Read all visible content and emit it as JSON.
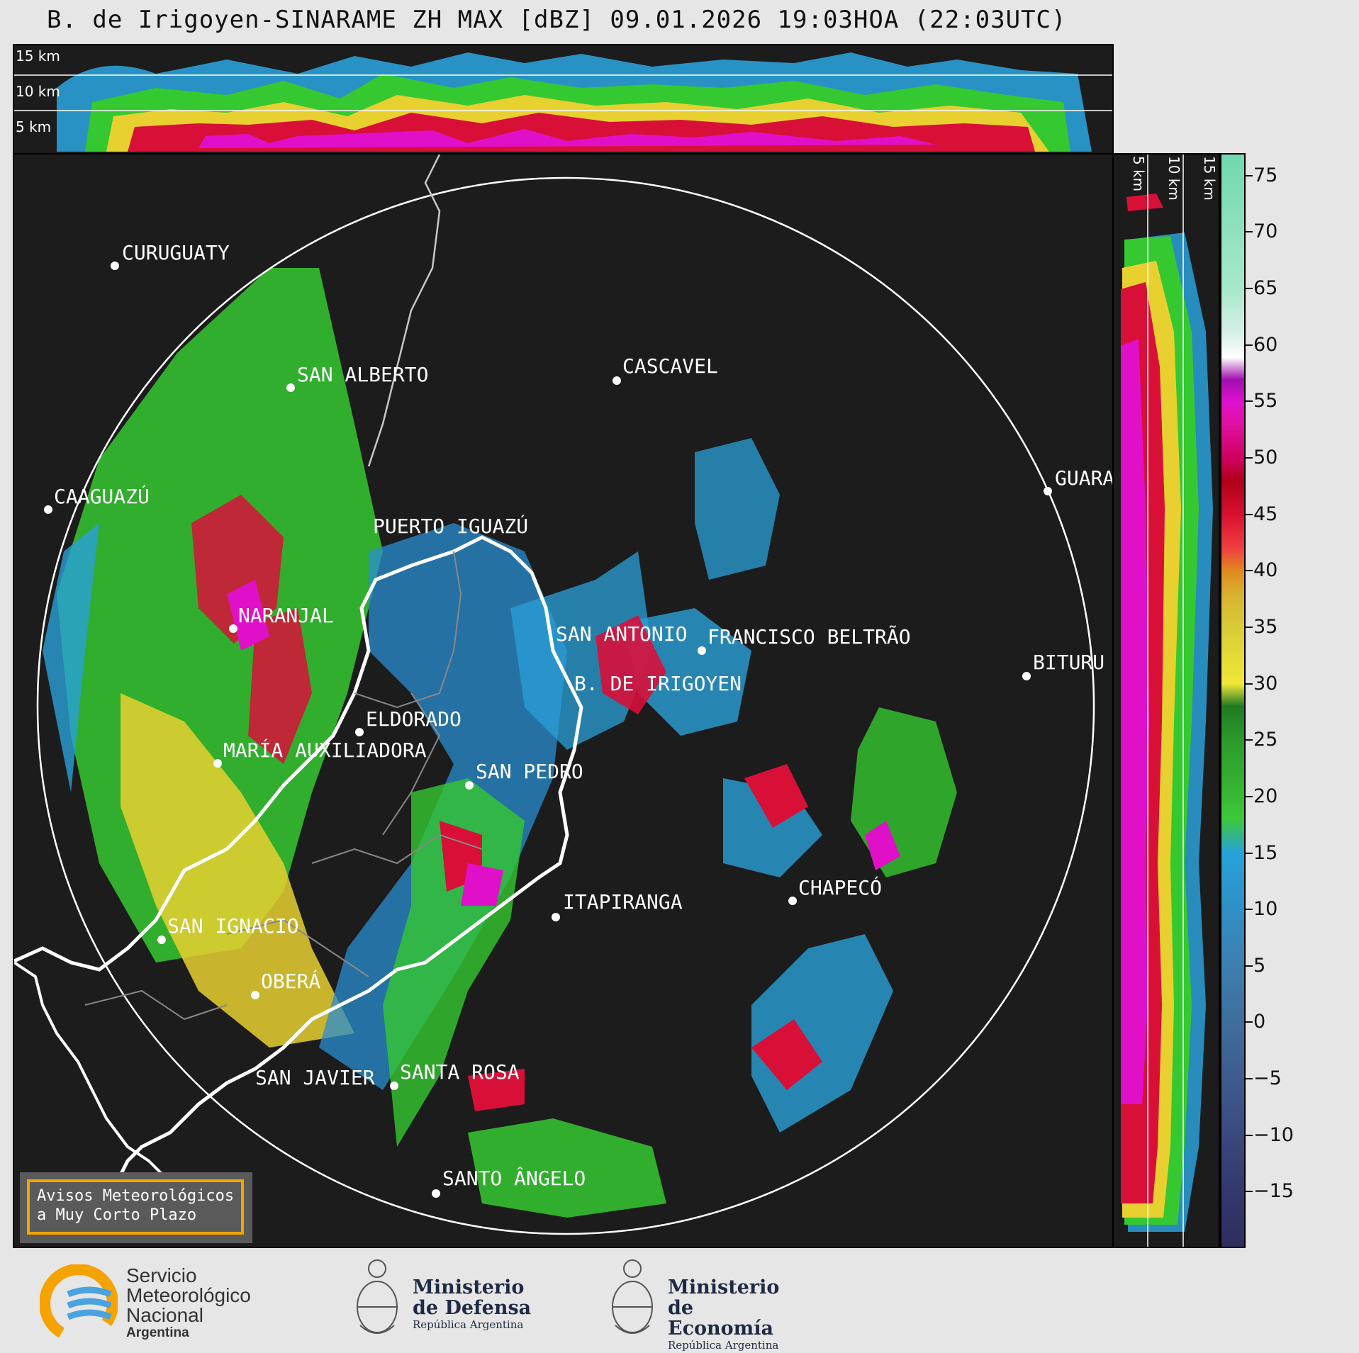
{
  "title": "B. de Irigoyen-SINARAME ZH MAX [dBZ] 09.01.2026 19:03HOA (22:03UTC)",
  "top_panel": {
    "height_labels": [
      "15 km",
      "10 km",
      "5 km"
    ]
  },
  "side_panel": {
    "height_labels": [
      "5 km",
      "10 km",
      "15 km"
    ]
  },
  "colorbar": {
    "unit": "dBZ",
    "ticks": [
      "75",
      "70",
      "65",
      "60",
      "55",
      "50",
      "45",
      "40",
      "35",
      "30",
      "25",
      "20",
      "15",
      "10",
      "5",
      "0",
      "−5",
      "−10",
      "−15"
    ],
    "range": [
      -20,
      77
    ]
  },
  "places": [
    {
      "name": "CURUGUATY"
    },
    {
      "name": "SAN ALBERTO"
    },
    {
      "name": "CAAGUAZÚ"
    },
    {
      "name": "CASCAVEL"
    },
    {
      "name": "GUARA"
    },
    {
      "name": "PUERTO IGUAZÚ"
    },
    {
      "name": "NARANJAL"
    },
    {
      "name": "SAN ANTONIO"
    },
    {
      "name": "FRANCISCO BELTRÃO"
    },
    {
      "name": "B. DE IRIGOYEN"
    },
    {
      "name": "BITURU"
    },
    {
      "name": "ELDORADO"
    },
    {
      "name": "MARÍA AUXILIADORA"
    },
    {
      "name": "SAN PEDRO"
    },
    {
      "name": "CHAPECÓ"
    },
    {
      "name": "ITAPIRANGA"
    },
    {
      "name": "SAN IGNACIO"
    },
    {
      "name": "OBERÁ"
    },
    {
      "name": "SAN JAVIER"
    },
    {
      "name": "SANTA ROSA"
    },
    {
      "name": "SANTO ÂNGELO"
    }
  ],
  "avisos": {
    "line1": "Avisos Meteorológicos",
    "line2": "a Muy Corto Plazo"
  },
  "logos": {
    "smn": {
      "line1": "Servicio",
      "line2": "Meteorológico",
      "line3": "Nacional",
      "line4": "Argentina"
    },
    "defensa": {
      "line1": "Ministerio",
      "line2": "de Defensa",
      "line3": "República Argentina"
    },
    "economia": {
      "line1": "Ministerio",
      "line2": "de Economía",
      "line3": "República Argentina"
    }
  },
  "colors": {
    "background": "#1c1c1c",
    "page": "#e6e6e6",
    "accent": "#f5a300"
  }
}
